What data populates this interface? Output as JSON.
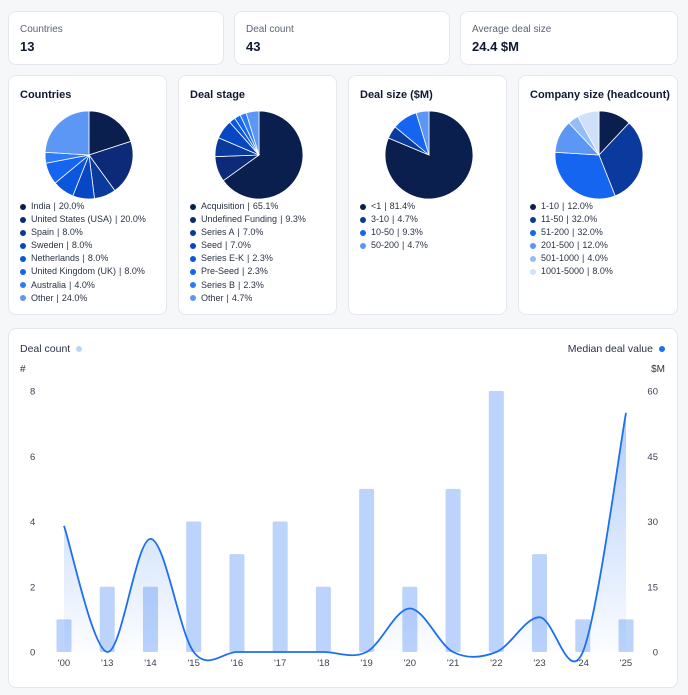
{
  "stats": [
    {
      "label": "Countries",
      "value": "13"
    },
    {
      "label": "Deal count",
      "value": "43"
    },
    {
      "label": "Average deal size",
      "value": "24.4 $M"
    }
  ],
  "pies": [
    {
      "title": "Countries",
      "slices": [
        {
          "label": "India",
          "pct": "20.0%",
          "value": 20.0,
          "color": "#0b1f4f"
        },
        {
          "label": "United States (USA)",
          "pct": "20.0%",
          "value": 20.0,
          "color": "#0d2a78"
        },
        {
          "label": "Spain",
          "pct": "8.0%",
          "value": 8.0,
          "color": "#0a3a9e"
        },
        {
          "label": "Sweden",
          "pct": "8.0%",
          "value": 8.0,
          "color": "#0847c4"
        },
        {
          "label": "Netherlands",
          "pct": "8.0%",
          "value": 8.0,
          "color": "#0a57de"
        },
        {
          "label": "United Kingdom (UK)",
          "pct": "8.0%",
          "value": 8.0,
          "color": "#1565f0"
        },
        {
          "label": "Australia",
          "pct": "4.0%",
          "value": 4.0,
          "color": "#2f7bf5"
        },
        {
          "label": "Other",
          "pct": "24.0%",
          "value": 24.0,
          "color": "#5c97f6"
        }
      ]
    },
    {
      "title": "Deal stage",
      "slices": [
        {
          "label": "Acquisition",
          "pct": "65.1%",
          "value": 65.1,
          "color": "#0b1f4f"
        },
        {
          "label": "Undefined Funding",
          "pct": "9.3%",
          "value": 9.3,
          "color": "#0d2a78"
        },
        {
          "label": "Series A",
          "pct": "7.0%",
          "value": 7.0,
          "color": "#0a3a9e"
        },
        {
          "label": "Seed",
          "pct": "7.0%",
          "value": 7.0,
          "color": "#0847c4"
        },
        {
          "label": "Series E-K",
          "pct": "2.3%",
          "value": 2.3,
          "color": "#0a57de"
        },
        {
          "label": "Pre-Seed",
          "pct": "2.3%",
          "value": 2.3,
          "color": "#1565f0"
        },
        {
          "label": "Series B",
          "pct": "2.3%",
          "value": 2.3,
          "color": "#2f7bf5"
        },
        {
          "label": "Other",
          "pct": "4.7%",
          "value": 4.7,
          "color": "#5c97f6"
        }
      ]
    },
    {
      "title": "Deal size ($M)",
      "slices": [
        {
          "label": "<1",
          "pct": "81.4%",
          "value": 81.4,
          "color": "#0b1f4f"
        },
        {
          "label": "3-10",
          "pct": "4.7%",
          "value": 4.7,
          "color": "#0a3a9e"
        },
        {
          "label": "10-50",
          "pct": "9.3%",
          "value": 9.3,
          "color": "#1565f0"
        },
        {
          "label": "50-200",
          "pct": "4.7%",
          "value": 4.7,
          "color": "#5c97f6"
        }
      ]
    },
    {
      "title": "Company size (headcount)",
      "slices": [
        {
          "label": "1-10",
          "pct": "12.0%",
          "value": 12.0,
          "color": "#0b1f4f"
        },
        {
          "label": "11-50",
          "pct": "32.0%",
          "value": 32.0,
          "color": "#0a3a9e"
        },
        {
          "label": "51-200",
          "pct": "32.0%",
          "value": 32.0,
          "color": "#1565f0"
        },
        {
          "label": "201-500",
          "pct": "12.0%",
          "value": 12.0,
          "color": "#5c97f6"
        },
        {
          "label": "501-1000",
          "pct": "4.0%",
          "value": 4.0,
          "color": "#93bdf9"
        },
        {
          "label": "1001-5000",
          "pct": "8.0%",
          "value": 8.0,
          "color": "#cfe0fb"
        }
      ]
    }
  ],
  "chart": {
    "legend_left": "Deal count",
    "legend_right": "Median deal value",
    "left_unit": "#",
    "right_unit": "$M",
    "bar_color": "#bcd3fb",
    "line_color": "#1d6ff2"
  },
  "chart_data": {
    "type": "bar",
    "categories": [
      "'00",
      "'13",
      "'14",
      "'15",
      "'16",
      "'17",
      "'18",
      "'19",
      "'20",
      "'21",
      "'22",
      "'23",
      "'24",
      "'25"
    ],
    "series": [
      {
        "name": "Deal count",
        "type": "bar",
        "axis": "left",
        "values": [
          1,
          2,
          2,
          4,
          3,
          4,
          2,
          5,
          2,
          5,
          8,
          3,
          1,
          1
        ]
      },
      {
        "name": "Median deal value",
        "type": "line",
        "axis": "right",
        "values": [
          29,
          0,
          26,
          0,
          0,
          0,
          0,
          0,
          10,
          0,
          0,
          8,
          0,
          55
        ]
      }
    ],
    "ylim_left": [
      0,
      8
    ],
    "ylim_right": [
      0,
      60
    ],
    "yticks_left": [
      0,
      2,
      4,
      6,
      8
    ],
    "yticks_right": [
      0,
      15,
      30,
      45,
      60
    ]
  }
}
